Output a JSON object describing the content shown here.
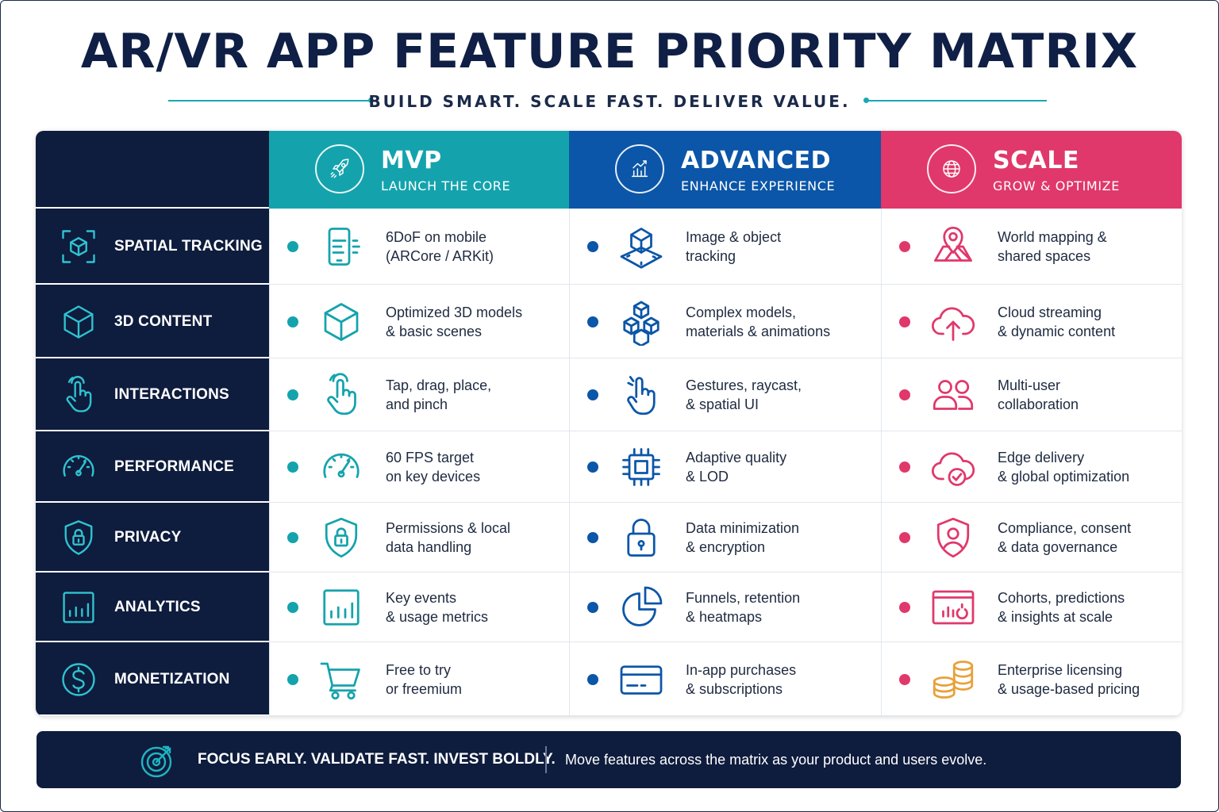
{
  "title": "AR/VR APP FEATURE PRIORITY MATRIX",
  "subtitle": "BUILD SMART. SCALE FAST. DELIVER VALUE.",
  "colors": {
    "navy": "#0e1c3d",
    "mvp": "#14a3ad",
    "advanced": "#0b56a8",
    "scale": "#e0386b",
    "coin": "#e8a13a"
  },
  "columns": [
    {
      "name": "MVP",
      "tagline": "LAUNCH THE CORE",
      "icon": "rocket-icon"
    },
    {
      "name": "ADVANCED",
      "tagline": "ENHANCE EXPERIENCE",
      "icon": "growth-chart-icon"
    },
    {
      "name": "SCALE",
      "tagline": "GROW & OPTIMIZE",
      "icon": "globe-icon"
    }
  ],
  "rows": [
    {
      "label": "SPATIAL TRACKING",
      "icon": "tracking-cube-icon",
      "cells": [
        {
          "line1": "6DoF on mobile",
          "line2": "(ARCore / ARKit)",
          "icon": "phone-icon"
        },
        {
          "line1": "Image & object",
          "line2": "tracking",
          "icon": "object-tracking-icon"
        },
        {
          "line1": "World mapping &",
          "line2": "shared spaces",
          "icon": "map-pin-icon"
        }
      ]
    },
    {
      "label": "3D CONTENT",
      "icon": "cube-icon",
      "cells": [
        {
          "line1": "Optimized 3D models",
          "line2": "& basic scenes",
          "icon": "cube-icon"
        },
        {
          "line1": "Complex models,",
          "line2": "materials & animations",
          "icon": "stacked-cubes-icon"
        },
        {
          "line1": "Cloud streaming",
          "line2": "& dynamic content",
          "icon": "cloud-upload-icon"
        }
      ]
    },
    {
      "label": "INTERACTIONS",
      "icon": "hand-pointer-icon",
      "cells": [
        {
          "line1": "Tap, drag, place,",
          "line2": "and pinch",
          "icon": "hand-tap-icon"
        },
        {
          "line1": "Gestures, raycast,",
          "line2": "& spatial UI",
          "icon": "hand-gesture-icon"
        },
        {
          "line1": "Multi-user",
          "line2": "collaboration",
          "icon": "users-icon"
        }
      ]
    },
    {
      "label": "PERFORMANCE",
      "icon": "gauge-icon",
      "cells": [
        {
          "line1": "60 FPS target",
          "line2": "on key devices",
          "icon": "speedometer-icon"
        },
        {
          "line1": "Adaptive quality",
          "line2": "& LOD",
          "icon": "chip-icon"
        },
        {
          "line1": "Edge delivery",
          "line2": "& global optimization",
          "icon": "cloud-check-icon"
        }
      ]
    },
    {
      "label": "PRIVACY",
      "icon": "shield-lock-icon",
      "cells": [
        {
          "line1": "Permissions & local",
          "line2": "data handling",
          "icon": "shield-lock-icon"
        },
        {
          "line1": "Data minimization",
          "line2": "& encryption",
          "icon": "padlock-icon"
        },
        {
          "line1": "Compliance, consent",
          "line2": "& data governance",
          "icon": "shield-user-icon"
        }
      ]
    },
    {
      "label": "ANALYTICS",
      "icon": "bar-chart-icon",
      "cells": [
        {
          "line1": "Key events",
          "line2": "& usage metrics",
          "icon": "bar-chart-icon"
        },
        {
          "line1": "Funnels, retention",
          "line2": "& heatmaps",
          "icon": "pie-chart-icon"
        },
        {
          "line1": "Cohorts, predictions",
          "line2": "& insights at scale",
          "icon": "dashboard-icon"
        }
      ]
    },
    {
      "label": "MONETIZATION",
      "icon": "dollar-icon",
      "cells": [
        {
          "line1": "Free to try",
          "line2": "or freemium",
          "icon": "cart-icon"
        },
        {
          "line1": "In-app purchases",
          "line2": "& subscriptions",
          "icon": "credit-card-icon"
        },
        {
          "line1": "Enterprise licensing",
          "line2": "& usage-based pricing",
          "icon": "coins-icon"
        }
      ]
    }
  ],
  "footer": {
    "headline": "FOCUS EARLY. VALIDATE FAST. INVEST BOLDLY.",
    "note": "Move features across the matrix as your product and users evolve.",
    "icon": "target-icon"
  }
}
